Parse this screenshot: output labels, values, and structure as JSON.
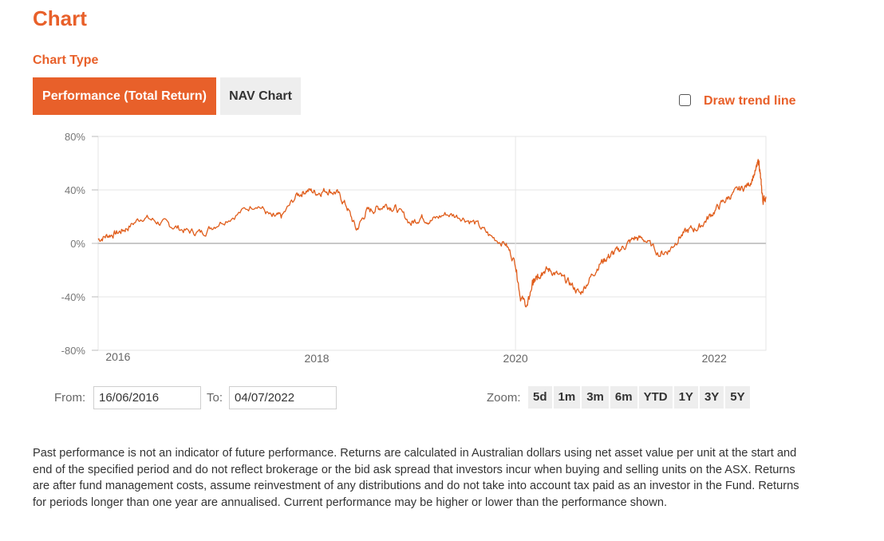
{
  "heading": "Chart",
  "chart_type_label": "Chart Type",
  "tabs": [
    {
      "label": "Performance (Total Return)",
      "active": true
    },
    {
      "label": "NAV Chart",
      "active": false
    }
  ],
  "trend_line": {
    "label": "Draw trend line",
    "checked": false
  },
  "range": {
    "from_label": "From:",
    "from_value": "16/06/2016",
    "to_label": "To:",
    "to_value": "04/07/2022"
  },
  "zoom": {
    "label": "Zoom:",
    "options": [
      "5d",
      "1m",
      "3m",
      "6m",
      "YTD",
      "1Y",
      "3Y",
      "5Y"
    ]
  },
  "colors": {
    "accent": "#e8602a",
    "line": "#e05d1b",
    "grid": "#e6e6e6"
  },
  "chart_data": {
    "type": "line",
    "title": "",
    "xlabel": "",
    "ylabel": "",
    "x_unit": "year",
    "xlim": [
      2015.8,
      2022.52
    ],
    "ylim": [
      -80,
      80
    ],
    "y_ticks": [
      80,
      40,
      0,
      -40,
      -80
    ],
    "y_tick_labels": [
      "80%",
      "40%",
      "0%",
      "-40%",
      "-80%"
    ],
    "x_ticks": [
      2016,
      2018,
      2020,
      2022
    ],
    "x_tick_labels": [
      "2016",
      "2018",
      "2020",
      "2022"
    ],
    "series": [
      {
        "name": "Performance (Total Return)",
        "x": [
          2015.8,
          2015.9,
          2016.0,
          2016.1,
          2016.25,
          2016.4,
          2016.55,
          2016.7,
          2016.85,
          2017.0,
          2017.2,
          2017.4,
          2017.55,
          2017.65,
          2017.8,
          2017.9,
          2018.0,
          2018.1,
          2018.2,
          2018.3,
          2018.4,
          2018.5,
          2018.6,
          2018.7,
          2018.8,
          2018.95,
          2019.05,
          2019.15,
          2019.3,
          2019.45,
          2019.6,
          2019.75,
          2019.9,
          2020.0,
          2020.05,
          2020.12,
          2020.17,
          2020.2,
          2020.24,
          2020.27,
          2020.35,
          2020.45,
          2020.55,
          2020.65,
          2020.75,
          2020.85,
          2020.93,
          2021.0,
          2021.1,
          2021.2,
          2021.3,
          2021.45,
          2021.55,
          2021.65,
          2021.75,
          2021.85,
          2021.95,
          2022.05,
          2022.15,
          2022.25,
          2022.35,
          2022.42,
          2022.45,
          2022.47,
          2022.49,
          2022.52
        ],
        "values": [
          3,
          6,
          8,
          12,
          20,
          16,
          13,
          9,
          8,
          15,
          22,
          30,
          19,
          20,
          36,
          40,
          38,
          40,
          38,
          28,
          10,
          24,
          26,
          29,
          26,
          15,
          20,
          17,
          22,
          20,
          15,
          5,
          0,
          -15,
          -40,
          -47,
          -30,
          -28,
          -24,
          -20,
          -20,
          -25,
          -30,
          -38,
          -26,
          -15,
          -10,
          -7,
          -2,
          4,
          3,
          -8,
          -5,
          5,
          10,
          12,
          20,
          28,
          35,
          40,
          44,
          55,
          62,
          45,
          32,
          35
        ]
      }
    ]
  }
}
